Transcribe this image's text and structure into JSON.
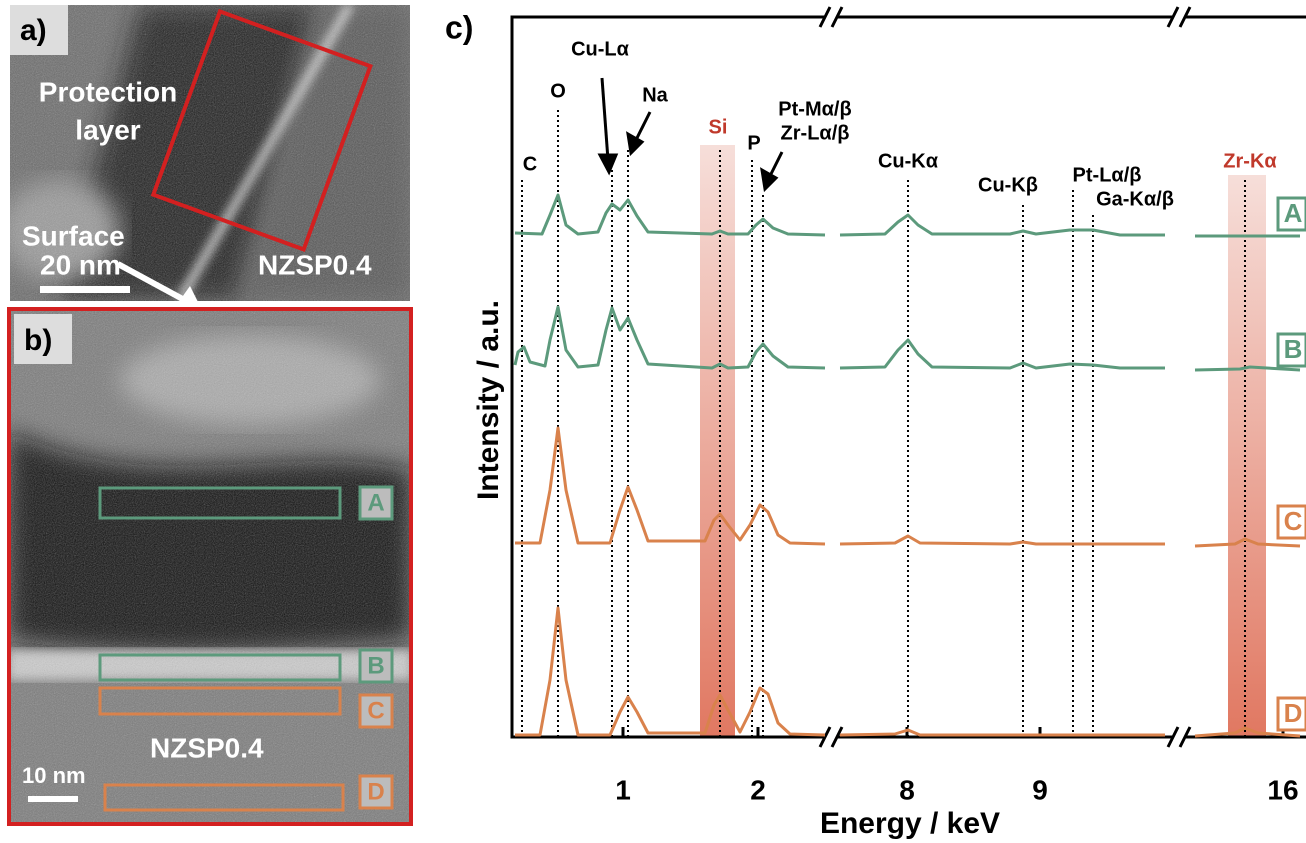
{
  "panel_a": {
    "label": "a)",
    "protection_layer": [
      "Protection",
      "layer"
    ],
    "surface": "Surface",
    "scale_bar": "20 nm",
    "sample": "NZSP0.4"
  },
  "panel_b": {
    "label": "b)",
    "regions": [
      "A",
      "B",
      "C",
      "D"
    ],
    "sample": "NZSP0.4",
    "scale_bar": "10 nm"
  },
  "panel_c": {
    "label": "c)",
    "y_label": "Intensity / a.u.",
    "x_label": "Energy / keV",
    "x_ticks": [
      "1",
      "2",
      "8",
      "9",
      "16"
    ],
    "peaks": [
      "C",
      "O",
      "Cu-Lα",
      "Na",
      "Si",
      "P",
      "Pt-Mα/β",
      "Zr-Lα/β",
      "Cu-Kα",
      "Cu-Kβ",
      "Pt-Lα/β",
      "Ga-Kα/β",
      "Zr-Kα"
    ],
    "spectra": [
      "A",
      "B",
      "C",
      "D"
    ]
  }
}
